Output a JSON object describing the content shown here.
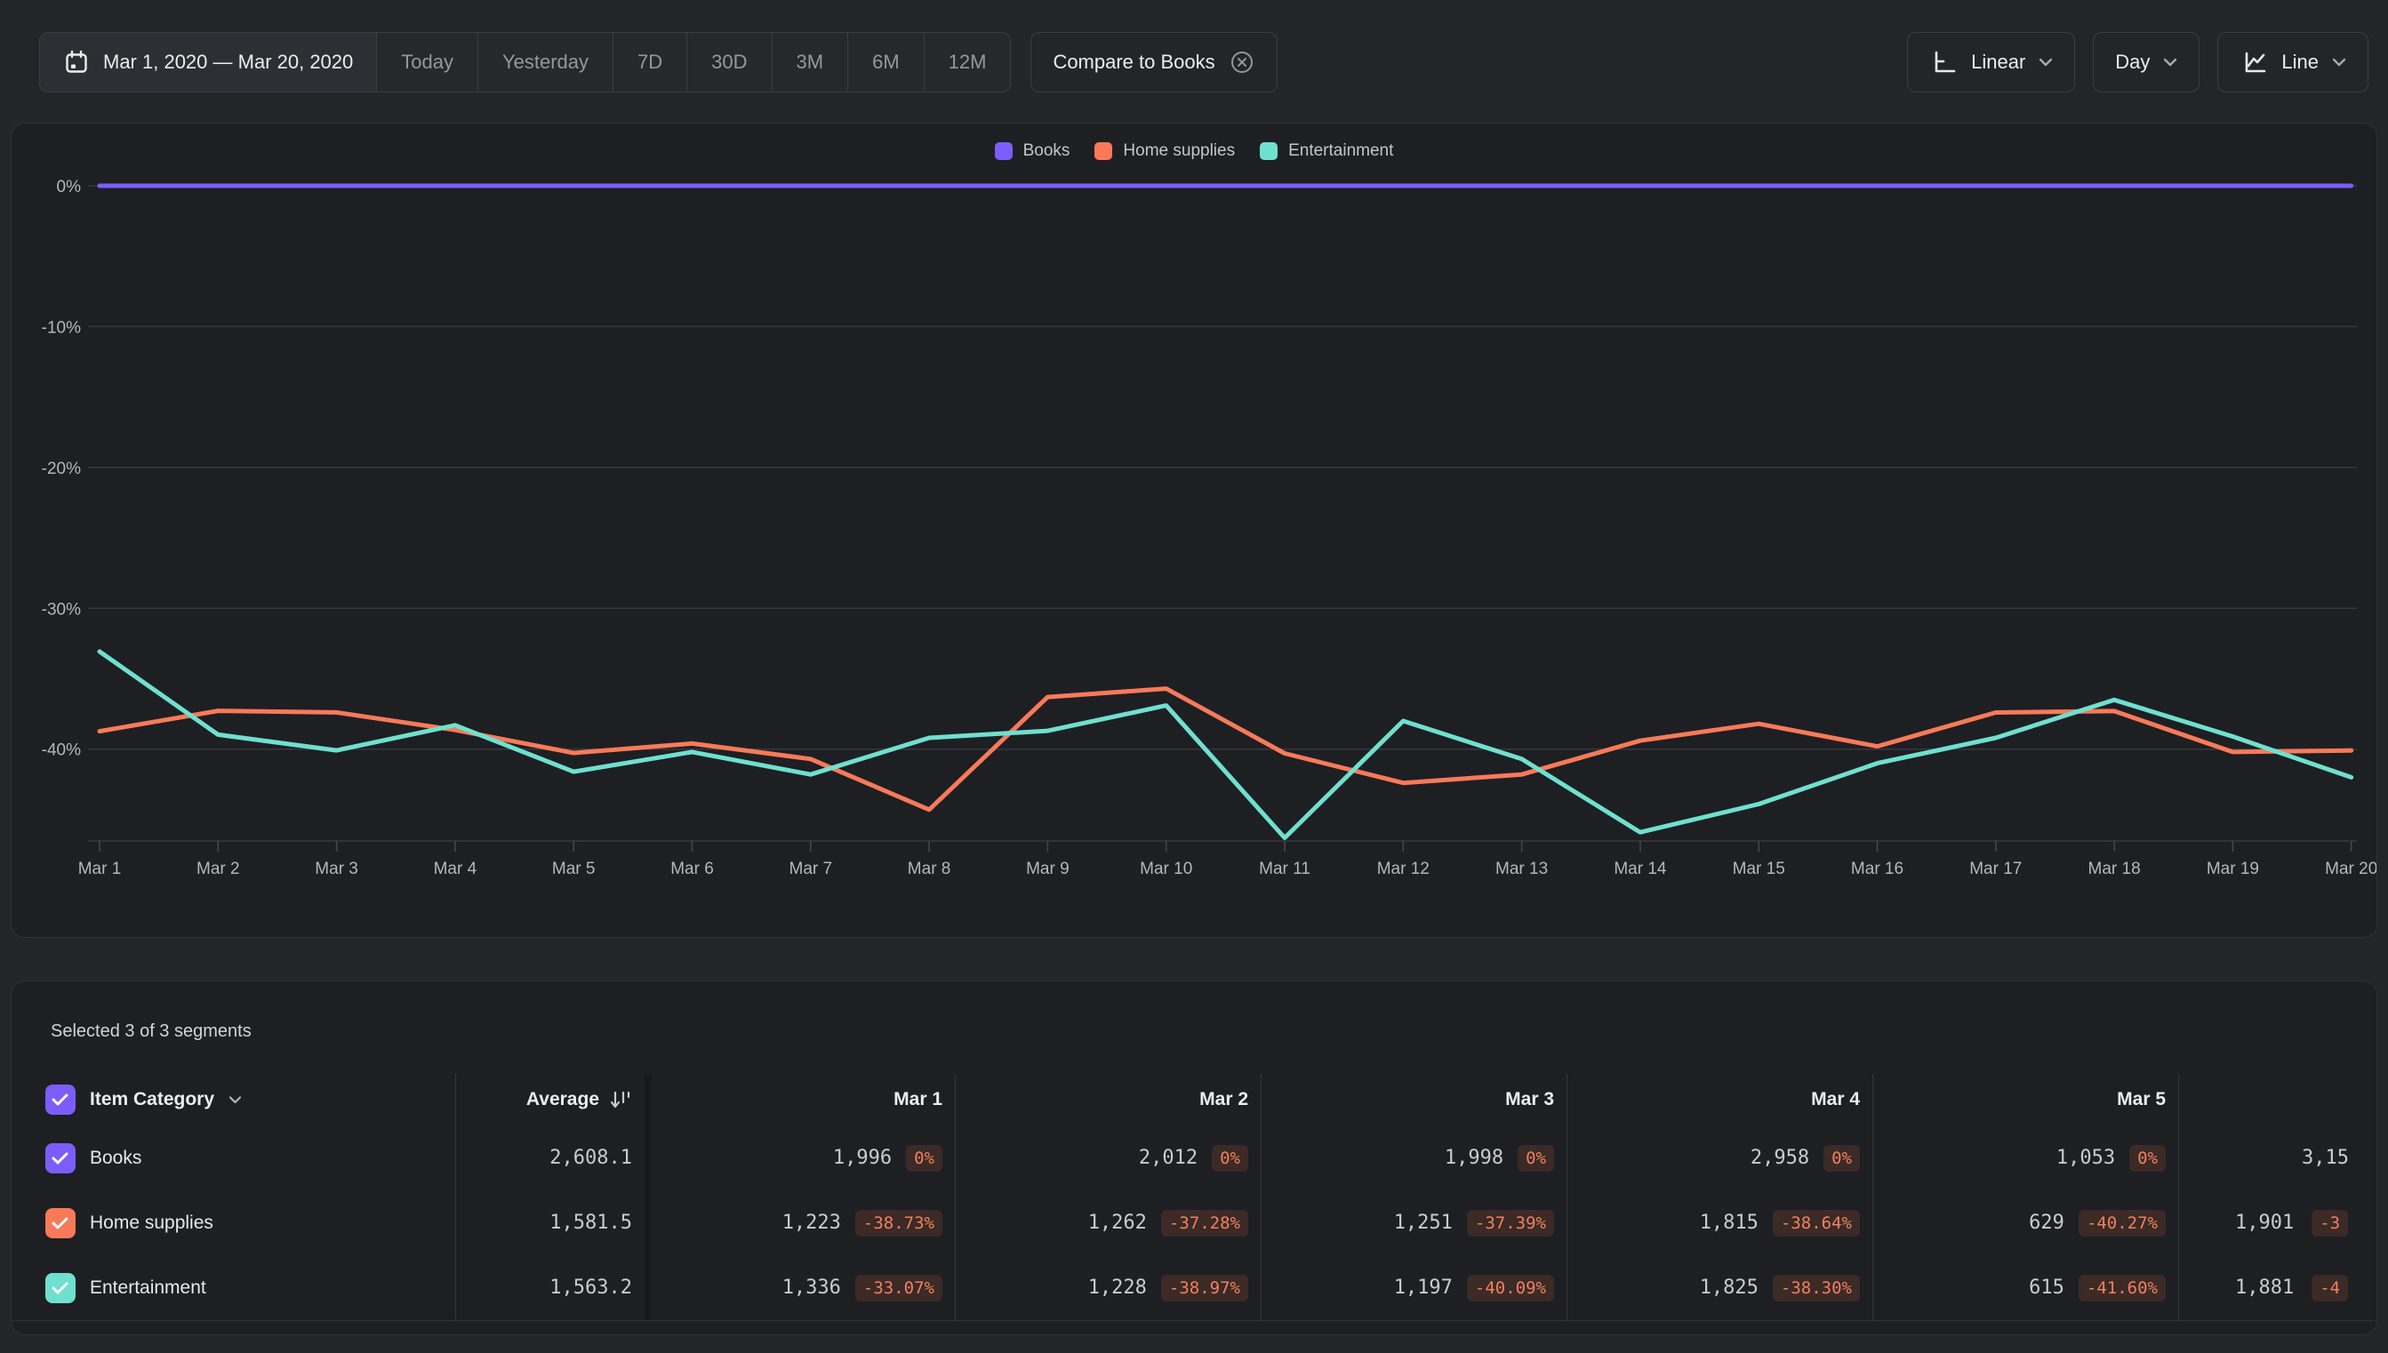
{
  "toolbar": {
    "date_range": "Mar 1, 2020 — Mar 20, 2020",
    "presets": [
      "Today",
      "Yesterday",
      "7D",
      "30D",
      "3M",
      "6M",
      "12M"
    ],
    "compare_label": "Compare to Books",
    "scale_label": "Linear",
    "granularity_label": "Day",
    "chart_type_label": "Line"
  },
  "chart_data": {
    "type": "line",
    "x": [
      "Mar 1",
      "Mar 2",
      "Mar 3",
      "Mar 4",
      "Mar 5",
      "Mar 6",
      "Mar 7",
      "Mar 8",
      "Mar 9",
      "Mar 10",
      "Mar 11",
      "Mar 12",
      "Mar 13",
      "Mar 14",
      "Mar 15",
      "Mar 16",
      "Mar 17",
      "Mar 18",
      "Mar 19",
      "Mar 20"
    ],
    "yticks": [
      "0%",
      "-10%",
      "-20%",
      "-30%",
      "-40%"
    ],
    "ylim": [
      -46.5,
      4.4
    ],
    "grid": true,
    "legend_position": "top-center",
    "series": [
      {
        "name": "Books",
        "color": "#7c5dfa",
        "values": [
          0,
          0,
          0,
          0,
          0,
          0,
          0,
          0,
          0,
          0,
          0,
          0,
          0,
          0,
          0,
          0,
          0,
          0,
          0,
          0
        ]
      },
      {
        "name": "Home supplies",
        "color": "#f87a58",
        "values": [
          -38.73,
          -37.28,
          -37.39,
          -38.64,
          -40.27,
          -39.6,
          -40.7,
          -44.3,
          -36.3,
          -35.7,
          -40.3,
          -42.4,
          -41.8,
          -39.4,
          -38.2,
          -39.8,
          -37.4,
          -37.3,
          -40.2,
          -40.1
        ]
      },
      {
        "name": "Entertainment",
        "color": "#6fe0cf",
        "values": [
          -33.07,
          -38.97,
          -40.09,
          -38.3,
          -41.6,
          -40.2,
          -41.8,
          -39.2,
          -38.7,
          -36.9,
          -46.3,
          -38.0,
          -40.7,
          -45.9,
          -43.9,
          -41.0,
          -39.2,
          -36.5,
          -39.1,
          -42.0
        ]
      }
    ]
  },
  "table": {
    "summary": "Selected 3 of 3 segments",
    "category_header": "Item Category",
    "average_header": "Average",
    "columns": [
      "Mar 1",
      "Mar 2",
      "Mar 3",
      "Mar 4",
      "Mar 5"
    ],
    "rows": [
      {
        "name": "Books",
        "color": "#7c5dfa",
        "average": "2,608.1",
        "cells": [
          [
            "1,996",
            "0%"
          ],
          [
            "2,012",
            "0%"
          ],
          [
            "1,998",
            "0%"
          ],
          [
            "2,958",
            "0%"
          ],
          [
            "1,053",
            "0%"
          ]
        ],
        "partial": [
          "3,15",
          ""
        ]
      },
      {
        "name": "Home supplies",
        "color": "#f87a58",
        "average": "1,581.5",
        "cells": [
          [
            "1,223",
            "-38.73%"
          ],
          [
            "1,262",
            "-37.28%"
          ],
          [
            "1,251",
            "-37.39%"
          ],
          [
            "1,815",
            "-38.64%"
          ],
          [
            "629",
            "-40.27%"
          ]
        ],
        "partial": [
          "1,901",
          "-3"
        ]
      },
      {
        "name": "Entertainment",
        "color": "#6fe0cf",
        "average": "1,563.2",
        "cells": [
          [
            "1,336",
            "-33.07%"
          ],
          [
            "1,228",
            "-38.97%"
          ],
          [
            "1,197",
            "-40.09%"
          ],
          [
            "1,825",
            "-38.30%"
          ],
          [
            "615",
            "-41.60%"
          ]
        ],
        "partial": [
          "1,881",
          "-4"
        ]
      }
    ]
  },
  "colors": {
    "accent_purple": "#7c5dfa",
    "accent_orange": "#f87a58",
    "accent_teal": "#6fe0cf",
    "badge_text": "#ef8060",
    "badge_bg": "#3b2a25"
  }
}
